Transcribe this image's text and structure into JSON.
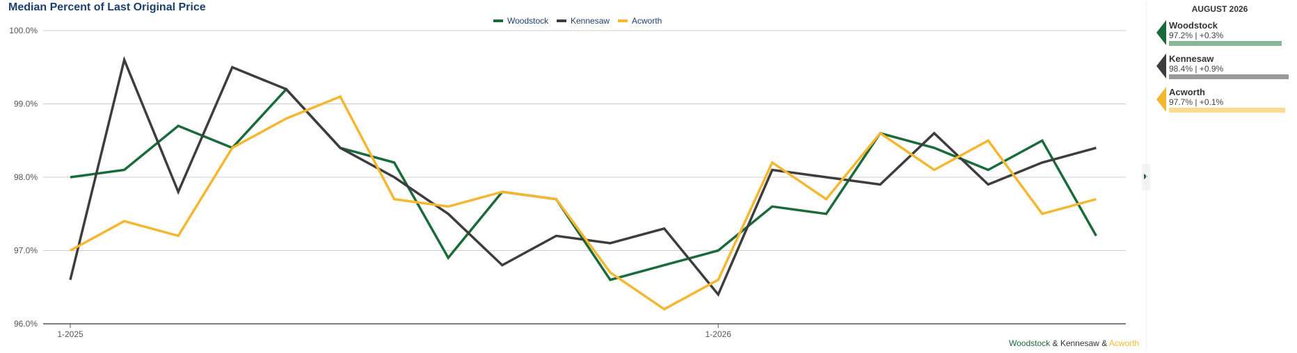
{
  "colors": {
    "Woodstock": "#1a6b3a",
    "Kennesaw": "#3d3d3d",
    "Acworth": "#f5b731",
    "Woodstock_light": "#86b796",
    "Kennesaw_light": "#9a9a9a",
    "Acworth_light": "#f9dc92",
    "title": "#1c3f6e"
  },
  "chart_data": {
    "type": "line",
    "title": "Median Percent of Last Original Price",
    "xlabel": "",
    "ylabel": "",
    "x": [
      "1-2025",
      "2-2025",
      "3-2025",
      "4-2025",
      "5-2025",
      "6-2025",
      "7-2025",
      "8-2025",
      "9-2025",
      "10-2025",
      "11-2025",
      "12-2025",
      "1-2026",
      "2-2026",
      "3-2026",
      "4-2026",
      "5-2026",
      "6-2026",
      "7-2026",
      "8-2026"
    ],
    "x_tick_labels": [
      "1-2025",
      "1-2026"
    ],
    "y_tick_labels": [
      "100.0%",
      "99.0%",
      "98.0%",
      "97.0%",
      "96.0%"
    ],
    "ylim": [
      96.0,
      100.0
    ],
    "grid": true,
    "legend": "top-center",
    "series": [
      {
        "name": "Woodstock",
        "values": [
          98.0,
          98.1,
          98.7,
          98.4,
          99.2,
          98.4,
          98.2,
          96.9,
          97.8,
          97.7,
          96.6,
          96.8,
          97.0,
          97.6,
          97.5,
          98.6,
          98.4,
          98.1,
          98.5,
          97.2
        ]
      },
      {
        "name": "Kennesaw",
        "values": [
          96.6,
          99.6,
          97.8,
          99.5,
          99.2,
          98.4,
          98.0,
          97.5,
          96.8,
          97.2,
          97.1,
          97.3,
          96.4,
          98.1,
          98.0,
          97.9,
          98.6,
          97.9,
          98.2,
          98.4
        ]
      },
      {
        "name": "Acworth",
        "values": [
          97.0,
          97.4,
          97.2,
          98.4,
          98.8,
          99.1,
          97.7,
          97.6,
          97.8,
          97.7,
          96.7,
          96.2,
          96.6,
          98.2,
          97.7,
          98.6,
          98.1,
          98.5,
          97.5,
          97.7
        ]
      }
    ]
  },
  "footer": {
    "woodstock": "Woodstock",
    "sep1": " & ",
    "kennesaw": "Kennesaw",
    "sep2": " & ",
    "acworth": "Acworth"
  },
  "side_panel": {
    "heading": "AUGUST 2026",
    "items": [
      {
        "name": "Woodstock",
        "value": "97.2% | +0.3%",
        "bar_fraction": 0.94
      },
      {
        "name": "Kennesaw",
        "value": "98.4% | +0.9%",
        "bar_fraction": 1.0
      },
      {
        "name": "Acworth",
        "value": "97.7% | +0.1%",
        "bar_fraction": 0.97
      }
    ]
  }
}
